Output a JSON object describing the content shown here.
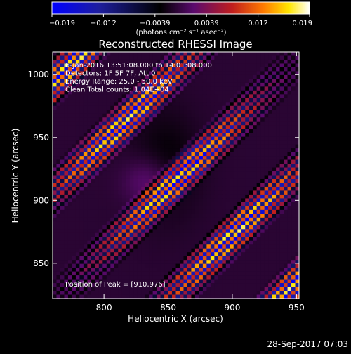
{
  "chart_data": {
    "type": "heatmap",
    "title": "Reconstructed RHESSI Image",
    "xlabel": "Heliocentric X (arcsec)",
    "ylabel": "Heliocentric Y (arcsec)",
    "xlim": [
      760,
      952
    ],
    "ylim": [
      822,
      1018
    ],
    "x_ticks": [
      800,
      850,
      900,
      950
    ],
    "y_ticks": [
      850,
      900,
      950,
      1000
    ],
    "colorbar": {
      "range": [
        -0.019,
        0.019
      ],
      "tick_labels": [
        "-0.019",
        "-0.012",
        "-0.0039",
        "0.0039",
        "0.012",
        "0.019"
      ],
      "units_label": "(photons cm⁻² s⁻¹ asec⁻²)",
      "colormap": [
        "#0000ff",
        "#1e1ea0",
        "#000000",
        "#5a0a6e",
        "#c01e1e",
        "#ff7a00",
        "#ffe600",
        "#ffffff"
      ]
    },
    "info_lines": [
      "6-Jan-2016 13:51:08.000 to 14:01:08.000",
      "Detectors: 1F 5F 7F, Att 0",
      "Energy Range: 25.0 - 50.0 keV",
      "Clean   Total counts: 1.04E+04"
    ],
    "peak_label": "Position of Peak = [910,976]",
    "peak": [
      910,
      976
    ],
    "grid": false
  },
  "footer": {
    "timestamp": "28-Sep-2017 07:03"
  }
}
